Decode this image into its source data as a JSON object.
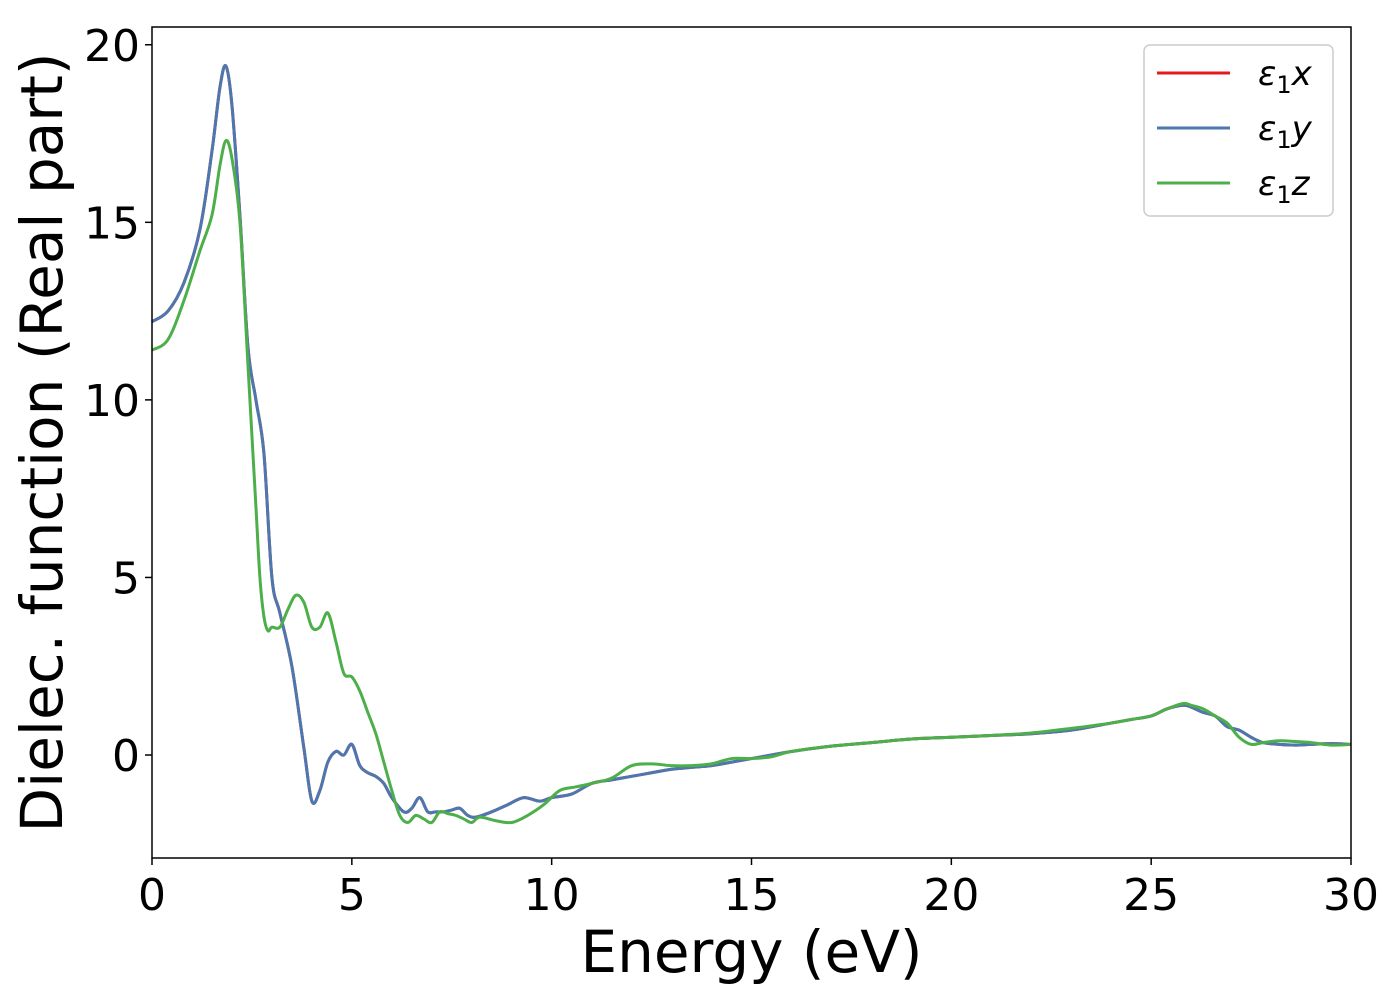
{
  "chart_data": {
    "type": "line",
    "xlabel": "Energy (eV)",
    "ylabel": "Dielec. function (Real part)",
    "xlim": [
      0,
      30
    ],
    "ylim": [
      -2.9,
      20.5
    ],
    "xticks": [
      0,
      5,
      10,
      15,
      20,
      25,
      30
    ],
    "yticks": [
      0,
      5,
      10,
      15,
      20
    ],
    "grid": false,
    "legend_position": "top-right",
    "series": [
      {
        "name": "ε1x",
        "symbol": "ε",
        "sub": "1",
        "suffix": "x",
        "color": "#e41a1c",
        "x": [
          0,
          0.4,
          0.8,
          1.2,
          1.5,
          1.7,
          1.85,
          2.0,
          2.2,
          2.4,
          2.6,
          2.8,
          3.0,
          3.2,
          3.5,
          3.8,
          4.0,
          4.2,
          4.4,
          4.6,
          4.8,
          5.0,
          5.2,
          5.4,
          5.6,
          5.8,
          6.0,
          6.3,
          6.5,
          6.7,
          6.9,
          7.1,
          7.3,
          7.5,
          7.7,
          7.9,
          8.1,
          8.5,
          8.9,
          9.3,
          9.7,
          10.0,
          10.5,
          11.0,
          11.5,
          12.0,
          12.5,
          13.0,
          13.5,
          14.0,
          14.5,
          15.0,
          15.5,
          16.0,
          17.0,
          18.0,
          19.0,
          20.0,
          21.0,
          22.0,
          23.0,
          24.0,
          24.5,
          25.0,
          25.4,
          25.8,
          26.0,
          26.3,
          26.6,
          26.9,
          27.2,
          27.5,
          27.8,
          28.2,
          28.6,
          29.0,
          29.5,
          30.0
        ],
        "values": [
          12.2,
          12.5,
          13.3,
          14.8,
          17.0,
          18.8,
          19.4,
          18.3,
          15.2,
          11.5,
          10.0,
          8.5,
          5.0,
          4.0,
          2.5,
          0.2,
          -1.3,
          -1.0,
          -0.2,
          0.1,
          0.0,
          0.3,
          -0.3,
          -0.5,
          -0.6,
          -0.8,
          -1.2,
          -1.6,
          -1.5,
          -1.2,
          -1.6,
          -1.6,
          -1.6,
          -1.55,
          -1.5,
          -1.7,
          -1.75,
          -1.6,
          -1.4,
          -1.2,
          -1.3,
          -1.2,
          -1.1,
          -0.8,
          -0.7,
          -0.6,
          -0.5,
          -0.4,
          -0.35,
          -0.3,
          -0.2,
          -0.1,
          0.0,
          0.1,
          0.25,
          0.35,
          0.45,
          0.5,
          0.55,
          0.6,
          0.7,
          0.9,
          1.0,
          1.1,
          1.3,
          1.4,
          1.35,
          1.2,
          1.1,
          0.8,
          0.7,
          0.5,
          0.35,
          0.3,
          0.28,
          0.3,
          0.32,
          0.3
        ]
      },
      {
        "name": "ε1y",
        "symbol": "ε",
        "sub": "1",
        "suffix": "y",
        "color": "#4c78b0",
        "x": [
          0,
          0.4,
          0.8,
          1.2,
          1.5,
          1.7,
          1.85,
          2.0,
          2.2,
          2.4,
          2.6,
          2.8,
          3.0,
          3.2,
          3.5,
          3.8,
          4.0,
          4.2,
          4.4,
          4.6,
          4.8,
          5.0,
          5.2,
          5.4,
          5.6,
          5.8,
          6.0,
          6.3,
          6.5,
          6.7,
          6.9,
          7.1,
          7.3,
          7.5,
          7.7,
          7.9,
          8.1,
          8.5,
          8.9,
          9.3,
          9.7,
          10.0,
          10.5,
          11.0,
          11.5,
          12.0,
          12.5,
          13.0,
          13.5,
          14.0,
          14.5,
          15.0,
          15.5,
          16.0,
          17.0,
          18.0,
          19.0,
          20.0,
          21.0,
          22.0,
          23.0,
          24.0,
          24.5,
          25.0,
          25.4,
          25.8,
          26.0,
          26.3,
          26.6,
          26.9,
          27.2,
          27.5,
          27.8,
          28.2,
          28.6,
          29.0,
          29.5,
          30.0
        ],
        "values": [
          12.2,
          12.5,
          13.3,
          14.8,
          17.0,
          18.8,
          19.4,
          18.3,
          15.2,
          11.5,
          10.0,
          8.5,
          5.0,
          4.0,
          2.5,
          0.2,
          -1.3,
          -1.0,
          -0.2,
          0.1,
          0.0,
          0.3,
          -0.3,
          -0.5,
          -0.6,
          -0.8,
          -1.2,
          -1.6,
          -1.5,
          -1.2,
          -1.6,
          -1.6,
          -1.6,
          -1.55,
          -1.5,
          -1.7,
          -1.75,
          -1.6,
          -1.4,
          -1.2,
          -1.3,
          -1.2,
          -1.1,
          -0.8,
          -0.7,
          -0.6,
          -0.5,
          -0.4,
          -0.35,
          -0.3,
          -0.2,
          -0.1,
          0.0,
          0.1,
          0.25,
          0.35,
          0.45,
          0.5,
          0.55,
          0.6,
          0.7,
          0.9,
          1.0,
          1.1,
          1.3,
          1.4,
          1.35,
          1.2,
          1.1,
          0.8,
          0.7,
          0.5,
          0.35,
          0.3,
          0.28,
          0.3,
          0.32,
          0.3
        ]
      },
      {
        "name": "ε1z",
        "symbol": "ε",
        "sub": "1",
        "suffix": "z",
        "color": "#4daf4a",
        "x": [
          0,
          0.4,
          0.8,
          1.2,
          1.5,
          1.7,
          1.85,
          2.0,
          2.2,
          2.4,
          2.6,
          2.7,
          2.8,
          2.9,
          3.0,
          3.2,
          3.4,
          3.6,
          3.8,
          4.0,
          4.2,
          4.4,
          4.6,
          4.8,
          5.0,
          5.2,
          5.4,
          5.6,
          5.8,
          6.0,
          6.2,
          6.4,
          6.6,
          6.8,
          7.0,
          7.2,
          7.4,
          7.6,
          7.8,
          8.0,
          8.2,
          8.6,
          9.0,
          9.4,
          9.8,
          10.2,
          10.6,
          11.0,
          11.5,
          12.0,
          12.5,
          13.0,
          13.5,
          14.0,
          14.5,
          15.0,
          15.5,
          16.0,
          17.0,
          18.0,
          19.0,
          20.0,
          21.0,
          22.0,
          23.0,
          24.0,
          24.5,
          25.0,
          25.4,
          25.8,
          26.0,
          26.3,
          26.6,
          26.9,
          27.2,
          27.5,
          27.8,
          28.2,
          28.6,
          29.0,
          29.5,
          30.0
        ],
        "values": [
          11.4,
          11.7,
          12.8,
          14.2,
          15.2,
          16.6,
          17.3,
          16.8,
          15.0,
          11.0,
          7.0,
          5.0,
          3.9,
          3.5,
          3.6,
          3.6,
          4.1,
          4.5,
          4.3,
          3.6,
          3.6,
          4.0,
          3.2,
          2.3,
          2.2,
          1.8,
          1.2,
          0.6,
          -0.2,
          -1.0,
          -1.7,
          -1.9,
          -1.7,
          -1.8,
          -1.9,
          -1.6,
          -1.65,
          -1.7,
          -1.8,
          -1.9,
          -1.75,
          -1.85,
          -1.9,
          -1.7,
          -1.4,
          -1.0,
          -0.9,
          -0.8,
          -0.65,
          -0.3,
          -0.25,
          -0.3,
          -0.3,
          -0.25,
          -0.1,
          -0.1,
          -0.05,
          0.1,
          0.25,
          0.35,
          0.45,
          0.5,
          0.55,
          0.62,
          0.75,
          0.9,
          1.0,
          1.1,
          1.3,
          1.45,
          1.4,
          1.3,
          1.1,
          0.9,
          0.5,
          0.3,
          0.35,
          0.4,
          0.38,
          0.35,
          0.28,
          0.3
        ]
      }
    ]
  }
}
